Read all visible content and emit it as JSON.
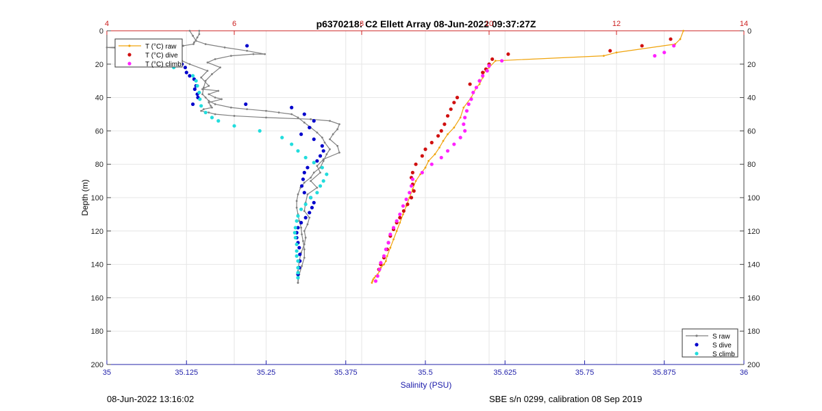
{
  "chart_data": {
    "type": "scatter",
    "title": "p6370218: C2 Ellett Array 08-Jun-2022 09:37:27Z",
    "xlabel": "Salinity (PSU)",
    "ylabel": "Depth (m)",
    "xlim": [
      35,
      36
    ],
    "x2lim": [
      4,
      14
    ],
    "ylim": [
      0,
      200
    ],
    "y_reversed": true,
    "grid": true,
    "x_ticks": [
      "35",
      "35.125",
      "35.25",
      "35.375",
      "35.5",
      "35.625",
      "35.75",
      "35.875",
      "36"
    ],
    "x2_ticks": [
      "4",
      "6",
      "8",
      "10",
      "12",
      "14"
    ],
    "y_ticks": [
      "0",
      "20",
      "40",
      "60",
      "80",
      "100",
      "120",
      "140",
      "160",
      "180",
      "200"
    ],
    "legend_temperature": {
      "placement": "top-left",
      "entries": [
        "T (°C) raw",
        "T (°C) dive",
        "T (°C) climb"
      ]
    },
    "legend_salinity": {
      "placement": "bottom-right",
      "entries": [
        "S raw",
        "S dive",
        "S climb"
      ]
    },
    "series": [
      {
        "name": "T (°C) raw",
        "axis": "top",
        "style": "line",
        "color": "#f0a30a",
        "x": [
          13.05,
          13.0,
          12.92,
          12.0,
          11.8,
          10.1,
          10.0,
          9.92,
          9.9,
          9.85,
          9.8,
          9.72,
          9.6,
          9.55,
          9.45,
          9.35,
          9.28,
          9.22,
          9.15,
          9.05,
          9.0,
          8.92,
          8.85,
          8.8,
          8.75,
          8.7,
          8.65,
          8.6,
          8.55,
          8.5,
          8.45,
          8.4,
          8.38,
          8.35,
          8.3,
          8.28,
          8.25,
          8.22,
          8.2,
          8.18,
          8.17,
          8.16
        ],
        "y": [
          0,
          5,
          8,
          13,
          15,
          18,
          22,
          25,
          28,
          32,
          34,
          40,
          46,
          52,
          58,
          62,
          66,
          70,
          74,
          78,
          82,
          86,
          90,
          95,
          100,
          105,
          110,
          115,
          120,
          125,
          130,
          135,
          138,
          140,
          142,
          144,
          146,
          147,
          148,
          149,
          150,
          151
        ]
      },
      {
        "name": "T (°C) dive",
        "axis": "top",
        "style": "points",
        "color": "#d01010",
        "x": [
          12.85,
          12.4,
          11.9,
          10.3,
          10.05,
          10.0,
          9.95,
          9.9,
          9.85,
          9.7,
          9.5,
          9.45,
          9.4,
          9.35,
          9.3,
          9.25,
          9.2,
          9.1,
          9.0,
          8.95,
          8.85,
          8.8,
          8.78,
          8.8,
          8.82,
          8.78,
          8.72,
          8.66,
          8.6,
          8.55,
          8.5,
          8.45,
          8.42,
          8.4,
          8.35,
          8.3,
          8.27
        ],
        "y": [
          5,
          9,
          12,
          14,
          17,
          20,
          23,
          25,
          30,
          32,
          40,
          43,
          47,
          51,
          56,
          60,
          63,
          67,
          71,
          75,
          80,
          85,
          88,
          92,
          96,
          100,
          104,
          108,
          112,
          115,
          119,
          123,
          127,
          131,
          136,
          140,
          143
        ]
      },
      {
        "name": "T (°C) climb",
        "axis": "top",
        "style": "points",
        "color": "#ff22ff",
        "x": [
          12.9,
          12.75,
          12.6,
          10.2,
          10.0,
          9.97,
          9.9,
          9.85,
          9.8,
          9.75,
          9.72,
          9.68,
          9.65,
          9.62,
          9.6,
          9.62,
          9.55,
          9.45,
          9.35,
          9.25,
          9.1,
          8.95,
          8.8,
          8.78,
          8.75,
          8.7,
          8.65,
          8.6,
          8.55,
          8.5,
          8.45,
          8.42,
          8.38,
          8.35,
          8.3,
          8.28,
          8.25,
          8.22
        ],
        "y": [
          9,
          13,
          15,
          18,
          21,
          24,
          27,
          30,
          34,
          37,
          41,
          44,
          48,
          52,
          56,
          60,
          64,
          68,
          72,
          76,
          80,
          85,
          89,
          93,
          97,
          101,
          105,
          110,
          114,
          118,
          122,
          127,
          131,
          135,
          139,
          143,
          147,
          150
        ]
      },
      {
        "name": "S raw",
        "axis": "bottom",
        "style": "line",
        "color": "#7f7f7f",
        "x": [
          35.145,
          35.145,
          35.142,
          35.137,
          35.136,
          35.12,
          35.0,
          35.045,
          35.08,
          35.096,
          35.1,
          35.118,
          35.13,
          35.158,
          35.148,
          35.16,
          35.15,
          35.175,
          35.16,
          35.17,
          35.18,
          35.16,
          35.163,
          35.165,
          35.152,
          35.148,
          35.16,
          35.17,
          35.2,
          35.25,
          35.32,
          35.35,
          35.365,
          35.362,
          35.355,
          35.35,
          35.362,
          35.365,
          35.34,
          35.33,
          35.335,
          35.32,
          35.33,
          35.315,
          35.312,
          35.31,
          35.318,
          35.315,
          35.31,
          35.312,
          35.31,
          35.305,
          35.302,
          35.3,
          35.3
        ],
        "y": [
          0,
          2,
          4,
          7,
          8,
          9,
          10,
          11,
          12,
          13,
          15,
          18,
          20,
          24,
          28,
          33,
          35,
          36,
          38,
          40,
          41,
          43,
          45,
          46,
          47,
          48,
          49,
          50,
          51,
          52,
          53,
          54,
          56,
          59,
          62,
          65,
          69,
          73,
          77,
          81,
          85,
          90,
          94,
          98,
          103,
          108,
          112,
          116,
          120,
          124,
          128,
          133,
          138,
          144,
          151
        ]
      },
      {
        "name": "S raw",
        "axis": "bottom",
        "style": "line",
        "color": "#7f7f7f",
        "x": [
          35.3,
          35.302,
          35.306,
          35.31,
          35.31,
          35.308,
          35.306,
          35.305,
          35.302,
          35.3,
          35.298,
          35.298,
          35.3,
          35.304,
          35.31,
          35.32,
          35.325,
          35.335,
          35.34,
          35.345,
          35.35,
          35.342,
          35.338,
          35.33,
          35.32,
          35.31,
          35.3,
          35.29,
          35.27,
          35.25,
          35.22,
          35.195,
          35.17,
          35.16,
          35.155,
          35.15,
          35.152,
          35.155,
          35.165,
          35.178,
          35.158,
          35.17,
          35.195,
          35.23,
          35.248,
          35.22,
          35.185,
          35.155,
          35.14,
          35.135,
          35.13
        ],
        "y": [
          151,
          146,
          141,
          136,
          131,
          126,
          122,
          118,
          114,
          110,
          106,
          102,
          98,
          94,
          91,
          88,
          85,
          82,
          78,
          74,
          71,
          67,
          64,
          61,
          58,
          55,
          52,
          50,
          49,
          48,
          47,
          46,
          44,
          42,
          40,
          38,
          34,
          30,
          26,
          22,
          19,
          17,
          15,
          14,
          14,
          12,
          10,
          8,
          6,
          3,
          0
        ]
      },
      {
        "name": "S dive",
        "axis": "bottom",
        "style": "points",
        "color": "#0000cc",
        "x": [
          35.22,
          35.11,
          35.095,
          35.095,
          35.118,
          35.123,
          35.125,
          35.13,
          35.137,
          35.14,
          35.138,
          35.142,
          35.143,
          35.135,
          35.218,
          35.29,
          35.31,
          35.325,
          35.318,
          35.305,
          35.325,
          35.338,
          35.34,
          35.335,
          35.33,
          35.315,
          35.31,
          35.308,
          35.306,
          35.31,
          35.32,
          35.325,
          35.322,
          35.318,
          35.312,
          35.305,
          35.3,
          35.298,
          35.298,
          35.3,
          35.302,
          35.303,
          35.303,
          35.302,
          35.3
        ],
        "y": [
          9,
          12,
          10,
          14,
          20,
          22,
          25,
          27,
          29,
          33,
          35,
          38,
          40,
          44,
          44,
          46,
          50,
          54,
          58,
          62,
          65,
          69,
          72,
          75,
          78,
          82,
          85,
          89,
          93,
          97,
          100,
          103,
          106,
          109,
          112,
          115,
          118,
          121,
          124,
          127,
          130,
          134,
          138,
          142,
          146
        ]
      },
      {
        "name": "S climb",
        "axis": "bottom",
        "style": "points",
        "color": "#22dddd",
        "x": [
          35.3,
          35.3,
          35.3,
          35.3,
          35.298,
          35.298,
          35.298,
          35.296,
          35.295,
          35.296,
          35.298,
          35.3,
          35.305,
          35.312,
          35.32,
          35.33,
          35.335,
          35.34,
          35.345,
          35.338,
          35.325,
          35.312,
          35.3,
          35.29,
          35.275,
          35.24,
          35.2,
          35.175,
          35.165,
          35.155,
          35.148,
          35.146,
          35.145,
          35.142,
          35.14,
          35.135,
          35.105,
          35.083
        ],
        "y": [
          148,
          145,
          142,
          138,
          135,
          132,
          128,
          124,
          121,
          118,
          114,
          111,
          107,
          104,
          100,
          97,
          93,
          90,
          86,
          82,
          79,
          76,
          72,
          68,
          64,
          60,
          57,
          54,
          52,
          49,
          45,
          41,
          37,
          33,
          30,
          27,
          22,
          14
        ]
      }
    ]
  },
  "footer": {
    "timestamp": "08-Jun-2022 13:16:02",
    "calibration": "SBE s/n 0299, calibration 08 Sep 2019"
  }
}
